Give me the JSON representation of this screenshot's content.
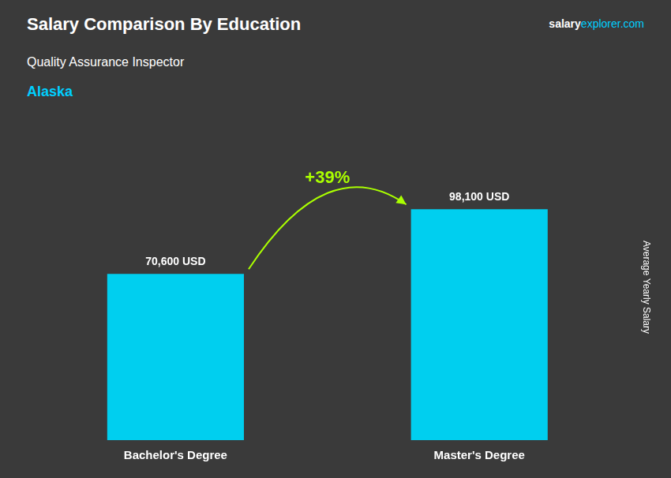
{
  "chart_data": {
    "type": "bar",
    "title": "Salary Comparison By Education",
    "subtitle": "Quality Assurance Inspector",
    "annotations": [
      "salary",
      "explorer.com",
      "Alaska",
      "+39%"
    ],
    "ylabel": "Average Yearly Salary",
    "categories": [
      "Bachelor's Degree",
      "Master's Degree"
    ],
    "values": [
      70600,
      98100
    ],
    "value_labels": [
      "70,600 USD",
      "98,100 USD"
    ],
    "data_labels": true,
    "color": "#00CFEF",
    "ylim": [
      0,
      130000
    ],
    "grid": false,
    "tick_labels": "x"
  }
}
